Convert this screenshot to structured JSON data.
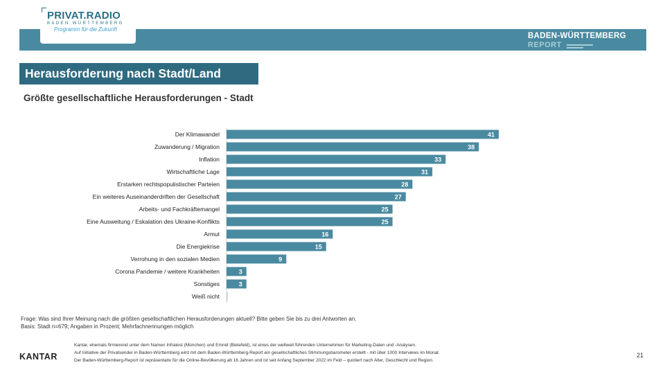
{
  "header": {
    "brand_name": "PRIVAT.RADIO",
    "brand_region": "BADEN WÜRTTEMBERG",
    "brand_tagline": "Programm für die Zukunft",
    "report_title": "BADEN-WÜRTTEMBERG",
    "report_subtitle": "REPORT",
    "band_color": "#4a8aa0"
  },
  "section": {
    "title": "Herausforderung nach Stadt/Land"
  },
  "chart_data": {
    "type": "bar",
    "orientation": "horizontal",
    "title": "Größte gesellschaftliche Herausforderungen - Stadt",
    "xlabel": "",
    "ylabel": "",
    "xlim": [
      0,
      41
    ],
    "bar_color": "#4a8aa0",
    "categories": [
      "Der Klimawandel",
      "Zuwanderung / Migration",
      "Inflation",
      "Wirtschaftliche Lage",
      "Erstarken rechtspopulistischer Parteien",
      "Ein weiteres Auseinanderdriften der Gesellschaft",
      "Arbeits- und Fachkräftemangel",
      "Eine Ausweitung / Eskalation des Ukraine-Konflikts",
      "Armut",
      "Die Energiekrise",
      "Verrohung in den sozialen Medien",
      "Corona Pandemie / weitere Krankheiten",
      "Sonstiges",
      "Weiß nicht"
    ],
    "values": [
      41,
      38,
      33,
      31,
      28,
      27,
      25,
      25,
      16,
      15,
      9,
      3,
      3,
      0
    ],
    "value_labels": [
      "41",
      "38",
      "33",
      "31",
      "28",
      "27",
      "25",
      "25",
      "16",
      "15",
      "9",
      "3",
      "3",
      ""
    ]
  },
  "footnotes": {
    "question": "Frage: Was sind Ihrer Meinung nach die größten gesellschaftlichen Herausforderungen aktuell? Bitte geben Sie bis zu drei Antworten an.",
    "basis": "Basis: Stadt n=679; Angaben in Prozent; Mehrfachnennungen möglich"
  },
  "footer": {
    "kantar": "KANTAR",
    "about_line1": "Kantar, ehemals firmierend unter dem Namen Infratest (München) und Emnid (Bielefeld), ist eines der weltweit führenden Unternehmen für Marketing-Daten und -Analysen.",
    "about_line2": "Auf Initiative der Privatsender in Baden-Württemberg wird mit dem Baden-Württemberg-Report ein gesellschaftliches Stimmungsbarometer erstellt - mit über 1000 Interviews im Monat.",
    "about_line3": "Der Baden-Württemberg-Report ist repräsentativ für die Online-Bevölkerung ab 16 Jahren und ist seit Anfang September 2022 im Feld – quotiert nach Alter, Geschlecht und Region.",
    "page_number": "21"
  }
}
